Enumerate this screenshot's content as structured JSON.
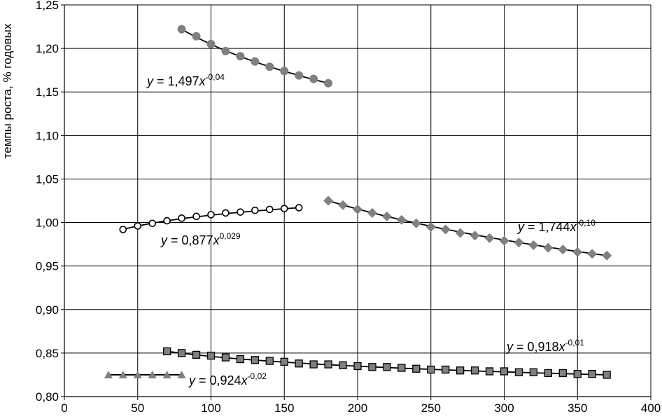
{
  "chart_data": {
    "type": "scatter",
    "title": "",
    "xlabel": "",
    "ylabel": "темпы роста, % годовых",
    "xlim": [
      0,
      400
    ],
    "ylim": [
      0.8,
      1.25
    ],
    "x_ticks": [
      "0",
      "50",
      "100",
      "150",
      "200",
      "250",
      "300",
      "350",
      "400"
    ],
    "y_ticks": [
      "0,80",
      "0,85",
      "0,90",
      "0,95",
      "1,00",
      "1,05",
      "1,10",
      "1,15",
      "1,20",
      "1,25"
    ],
    "grid": {
      "x": true,
      "y": true
    },
    "series": [
      {
        "marker": "circle-filled",
        "color": "#808080",
        "x": [
          80,
          90,
          100,
          110,
          120,
          130,
          140,
          150,
          160,
          170,
          180
        ],
        "y": [
          1.222,
          1.214,
          1.205,
          1.197,
          1.191,
          1.185,
          1.179,
          1.174,
          1.169,
          1.165,
          1.16
        ],
        "trend": {
          "a": 1.497,
          "b": -0.04
        },
        "equation": {
          "prefix": "y = 1,497x",
          "exponent": "-0,04"
        }
      },
      {
        "marker": "circle-open",
        "color": "#000000",
        "x": [
          40,
          50,
          60,
          70,
          80,
          90,
          100,
          110,
          120,
          130,
          140,
          150,
          160
        ],
        "y": [
          0.992,
          0.996,
          0.999,
          1.002,
          1.005,
          1.007,
          1.009,
          1.011,
          1.012,
          1.014,
          1.015,
          1.016,
          1.017
        ],
        "trend": {
          "a": 0.877,
          "b": 0.029
        },
        "equation": {
          "prefix": "y = 0,877x",
          "exponent": "0,029"
        }
      },
      {
        "marker": "diamond",
        "color": "#808080",
        "x": [
          180,
          190,
          200,
          210,
          220,
          230,
          240,
          250,
          260,
          270,
          280,
          290,
          300,
          310,
          320,
          330,
          340,
          350,
          360,
          370
        ],
        "y": [
          1.025,
          1.02,
          1.015,
          1.011,
          1.007,
          1.003,
          0.999,
          0.995,
          0.992,
          0.988,
          0.985,
          0.982,
          0.979,
          0.977,
          0.974,
          0.971,
          0.969,
          0.966,
          0.964,
          0.962
        ],
        "trend": {
          "a": 1.744,
          "b": -0.1
        },
        "equation": {
          "prefix": "y = 1,744x",
          "exponent": "-0,10"
        }
      },
      {
        "marker": "square",
        "color": "#808080",
        "x": [
          70,
          80,
          90,
          100,
          110,
          120,
          130,
          140,
          150,
          160,
          170,
          180,
          190,
          200,
          210,
          220,
          230,
          240,
          250,
          260,
          270,
          280,
          290,
          300,
          310,
          320,
          330,
          340,
          350,
          360,
          370
        ],
        "y": [
          0.852,
          0.85,
          0.848,
          0.847,
          0.845,
          0.843,
          0.842,
          0.841,
          0.84,
          0.838,
          0.837,
          0.837,
          0.836,
          0.835,
          0.834,
          0.834,
          0.833,
          0.832,
          0.831,
          0.831,
          0.83,
          0.83,
          0.829,
          0.829,
          0.828,
          0.828,
          0.827,
          0.827,
          0.826,
          0.826,
          0.825
        ],
        "trend": {
          "a": 0.918,
          "b": -0.01
        },
        "equation": {
          "prefix": "y = 0,918x",
          "exponent": "-0,01"
        }
      },
      {
        "marker": "triangle",
        "color": "#808080",
        "x": [
          30,
          40,
          50,
          60,
          70,
          80
        ],
        "y": [
          0.825,
          0.825,
          0.825,
          0.825,
          0.825,
          0.825
        ],
        "trend": {
          "a": 0.924,
          "b": -0.02
        },
        "equation": {
          "prefix": "y = 0,924x",
          "exponent": "-0,02"
        }
      }
    ]
  }
}
